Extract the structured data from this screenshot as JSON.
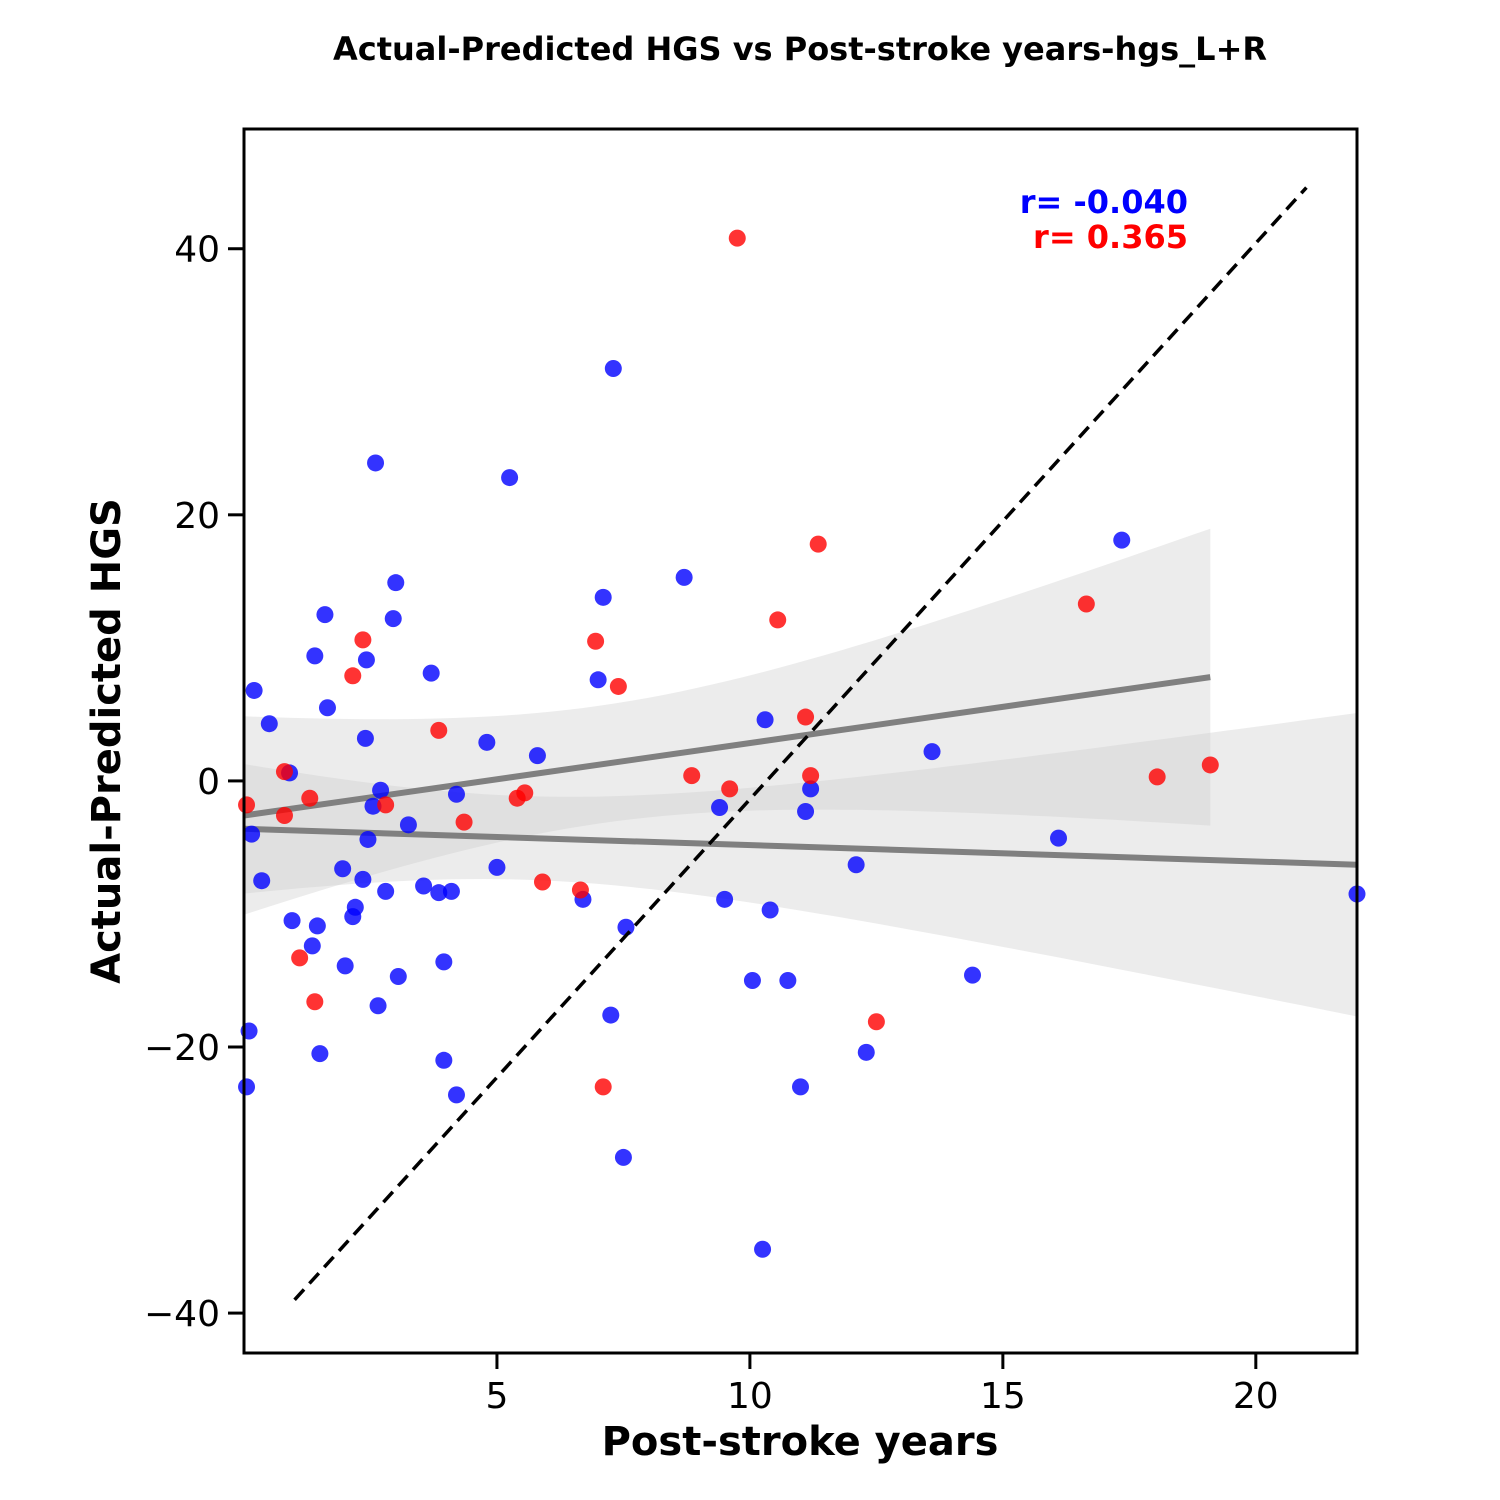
{
  "chart_data": {
    "type": "scatter",
    "title": "Actual-Predicted HGS vs Post-stroke years-hgs_L+R",
    "xlabel": "Post-stroke years",
    "ylabel": "Actual-Predicted HGS",
    "xlim": [
      0,
      22
    ],
    "ylim": [
      -43,
      49
    ],
    "xticks": [
      5,
      10,
      15,
      20
    ],
    "yticks": [
      -40,
      -20,
      0,
      20,
      40
    ],
    "grid": false,
    "annotations": [
      {
        "text": "r= -0.040",
        "color": "#0000ff"
      },
      {
        "text": "r= 0.365",
        "color": "#ff0000"
      }
    ],
    "identity_line": {
      "style": "dashed",
      "color": "#000000",
      "x": [
        1,
        21
      ],
      "y": [
        -39,
        44.6
      ]
    },
    "series": [
      {
        "color": "#0000ff",
        "points": [
          [
            0.2,
            6.8
          ],
          [
            0.5,
            4.3
          ],
          [
            0.9,
            0.6
          ],
          [
            0.15,
            -4
          ],
          [
            0.35,
            -7.5
          ],
          [
            0.1,
            -18.8
          ],
          [
            0.05,
            -23
          ],
          [
            0.95,
            -10.5
          ],
          [
            1.35,
            -12.4
          ],
          [
            1.4,
            9.4
          ],
          [
            1.45,
            -10.9
          ],
          [
            1.5,
            -20.5
          ],
          [
            1.6,
            12.5
          ],
          [
            1.65,
            5.5
          ],
          [
            1.95,
            -6.6
          ],
          [
            2.0,
            -13.9
          ],
          [
            2.15,
            -10.2
          ],
          [
            2.2,
            -9.5
          ],
          [
            2.35,
            -7.4
          ],
          [
            2.4,
            3.2
          ],
          [
            2.42,
            9.1
          ],
          [
            2.45,
            -4.4
          ],
          [
            2.55,
            -1.9
          ],
          [
            2.6,
            23.9
          ],
          [
            2.7,
            -0.7
          ],
          [
            2.65,
            -16.9
          ],
          [
            2.8,
            -8.3
          ],
          [
            2.95,
            12.2
          ],
          [
            3.0,
            14.9
          ],
          [
            3.05,
            -14.7
          ],
          [
            3.25,
            -3.3
          ],
          [
            3.55,
            -7.9
          ],
          [
            3.7,
            8.1
          ],
          [
            3.85,
            -8.4
          ],
          [
            3.95,
            -13.6
          ],
          [
            3.95,
            -21
          ],
          [
            4.1,
            -8.3
          ],
          [
            4.2,
            -1
          ],
          [
            4.2,
            -23.6
          ],
          [
            4.8,
            2.9
          ],
          [
            5.0,
            -6.5
          ],
          [
            5.25,
            22.8
          ],
          [
            5.8,
            1.9
          ],
          [
            6.7,
            -8.9
          ],
          [
            7.0,
            7.6
          ],
          [
            7.1,
            13.8
          ],
          [
            7.25,
            -17.6
          ],
          [
            7.3,
            31
          ],
          [
            7.5,
            -28.3
          ],
          [
            7.55,
            -11
          ],
          [
            8.7,
            15.3
          ],
          [
            9.4,
            -2
          ],
          [
            9.5,
            -8.9
          ],
          [
            10.05,
            -15
          ],
          [
            10.25,
            -35.2
          ],
          [
            10.3,
            4.6
          ],
          [
            10.4,
            -9.7
          ],
          [
            10.75,
            -15
          ],
          [
            11.0,
            -23
          ],
          [
            11.1,
            -2.3
          ],
          [
            11.2,
            -0.6
          ],
          [
            12.1,
            -6.3
          ],
          [
            12.3,
            -20.4
          ],
          [
            13.6,
            2.2
          ],
          [
            14.4,
            -14.6
          ],
          [
            16.1,
            -4.3
          ],
          [
            17.35,
            18.1
          ],
          [
            22.0,
            -8.5
          ]
        ],
        "regression": {
          "x": [
            0,
            22
          ],
          "y": [
            -3.6,
            -6.3
          ]
        }
      },
      {
        "color": "#ff0000",
        "points": [
          [
            0.05,
            -1.8
          ],
          [
            0.8,
            0.7
          ],
          [
            0.8,
            -2.6
          ],
          [
            1.1,
            -13.3
          ],
          [
            1.3,
            -1.3
          ],
          [
            1.4,
            -16.6
          ],
          [
            2.15,
            7.9
          ],
          [
            2.35,
            10.6
          ],
          [
            2.8,
            -1.8
          ],
          [
            3.85,
            3.8
          ],
          [
            4.35,
            -3.1
          ],
          [
            5.4,
            -1.3
          ],
          [
            5.55,
            -0.9
          ],
          [
            5.9,
            -7.6
          ],
          [
            6.65,
            -8.2
          ],
          [
            6.95,
            10.5
          ],
          [
            7.1,
            -23
          ],
          [
            7.4,
            7.1
          ],
          [
            8.85,
            0.4
          ],
          [
            9.6,
            -0.6
          ],
          [
            9.75,
            40.8
          ],
          [
            10.55,
            12.1
          ],
          [
            11.1,
            4.8
          ],
          [
            11.2,
            0.4
          ],
          [
            11.35,
            17.8
          ],
          [
            12.5,
            -18.1
          ],
          [
            16.65,
            13.3
          ],
          [
            18.05,
            0.3
          ],
          [
            19.1,
            1.2
          ]
        ],
        "regression": {
          "x": [
            0,
            19.1
          ],
          "y": [
            -2.6,
            7.8
          ]
        }
      }
    ]
  }
}
